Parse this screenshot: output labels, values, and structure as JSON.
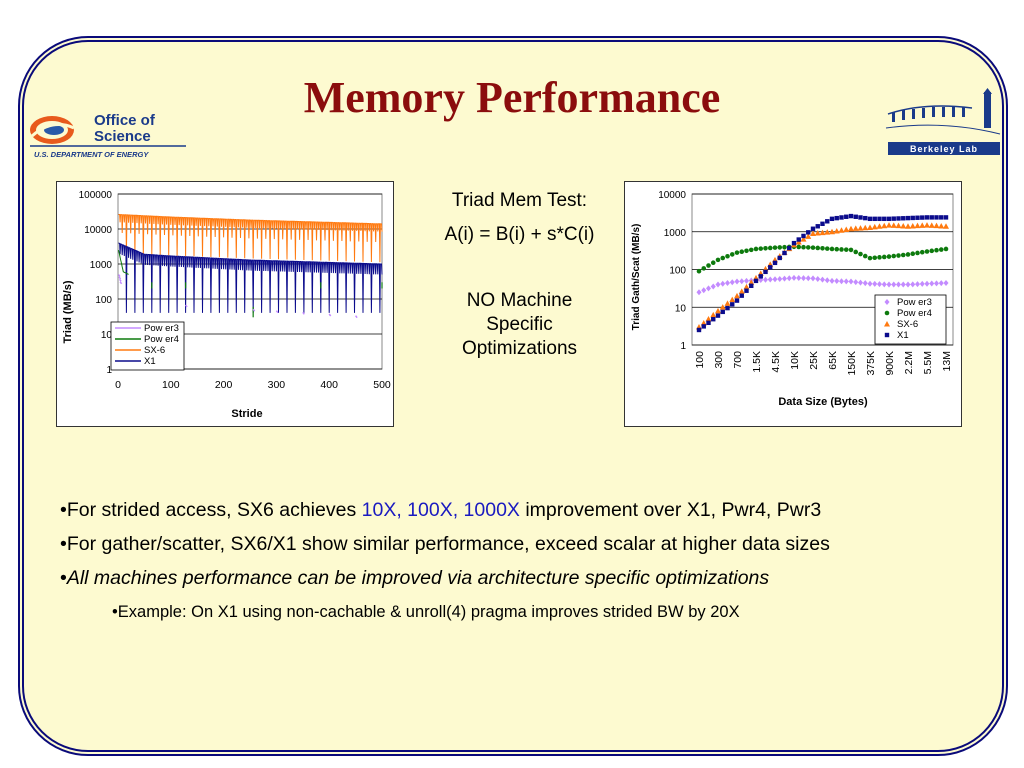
{
  "slide": {
    "title": "Memory Performance",
    "logo_left": {
      "line1": "Office of",
      "line2": "Science",
      "line3": "U.S. DEPARTMENT OF ENERGY"
    },
    "logo_right": {
      "text": "Berkeley Lab"
    }
  },
  "center": {
    "line1": "Triad Mem Test:",
    "line2": "A(i) = B(i) + s*C(i)",
    "line3": "NO Machine",
    "line4": "Specific",
    "line5": "Optimizations"
  },
  "bullets": {
    "b1_pre": "•For strided access, SX6 achieves ",
    "b1_hl": "10X, 100X, 1000X",
    "b1_post": " improvement over X1, Pwr4, Pwr3",
    "b2": "•For gather/scatter, SX6/X1 show similar performance, exceed scalar at higher data sizes",
    "b3_bullet": "•",
    "b3": "All machines performance can be improved via architecture specific optimizations",
    "b4": "•Example: On X1 using non-cachable & unroll(4) pragma improves strided BW by 20X"
  },
  "colors": {
    "Power3": "#c38bff",
    "Power4": "#0d7a0d",
    "SX-6": "#ff7a10",
    "X1": "#0b0b8c"
  },
  "chart_data": [
    {
      "type": "line",
      "xlabel": "Stride",
      "ylabel": "Triad (MB/s)",
      "ylog": true,
      "ylim": [
        1,
        100000
      ],
      "xlim": [
        0,
        500
      ],
      "yticks": [
        "100000",
        "10000",
        "1000",
        "100",
        "10",
        "1"
      ],
      "xticks": [
        "0",
        "100",
        "200",
        "300",
        "400",
        "500"
      ],
      "legend": [
        "Pow er3",
        "Pow er4",
        "SX-6",
        "X1"
      ],
      "legend_position": "lower-left",
      "series": [
        {
          "name": "Pow er3",
          "description_points": [
            [
              1,
              500
            ],
            [
              10,
              120
            ],
            [
              50,
              80
            ],
            [
              500,
              30
            ]
          ]
        },
        {
          "name": "Pow er4",
          "description_points": [
            [
              1,
              2500
            ],
            [
              10,
              600
            ],
            [
              50,
              300
            ],
            [
              256,
              30
            ],
            [
              500,
              60
            ]
          ]
        },
        {
          "name": "SX-6",
          "description_points": [
            [
              1,
              26000
            ],
            [
              100,
              22000
            ],
            [
              250,
              18000
            ],
            [
              500,
              14000
            ]
          ]
        },
        {
          "name": "X1",
          "description_points": [
            [
              1,
              4000
            ],
            [
              50,
              1900
            ],
            [
              100,
              1700
            ],
            [
              250,
              1300
            ],
            [
              500,
              1000
            ]
          ]
        }
      ]
    },
    {
      "type": "scatter",
      "xlabel": "Data Size (Bytes)",
      "ylabel": "Triad Gath/Scat (MB/s)",
      "ylog": true,
      "ylim": [
        1,
        10000
      ],
      "yticks": [
        "10000",
        "1000",
        "100",
        "10",
        "1"
      ],
      "categories": [
        "100",
        "300",
        "700",
        "1.5K",
        "4.5K",
        "10K",
        "25K",
        "65K",
        "150K",
        "375K",
        "900K",
        "2.2M",
        "5.5M",
        "13M"
      ],
      "legend": [
        "Pow er3",
        "Pow er4",
        "SX-6",
        "X1"
      ],
      "legend_position": "right",
      "series": [
        {
          "name": "Pow er3",
          "values": [
            25,
            40,
            48,
            52,
            55,
            60,
            58,
            50,
            48,
            42,
            40,
            40,
            42,
            44
          ]
        },
        {
          "name": "Pow er4",
          "values": [
            90,
            180,
            280,
            350,
            380,
            400,
            380,
            350,
            330,
            200,
            220,
            250,
            300,
            350
          ]
        },
        {
          "name": "SX-6",
          "values": [
            3,
            8,
            20,
            60,
            180,
            450,
            900,
            1000,
            1200,
            1300,
            1500,
            1400,
            1500,
            1400
          ]
        },
        {
          "name": "X1",
          "values": [
            2.5,
            6,
            15,
            50,
            150,
            500,
            1200,
            2200,
            2600,
            2200,
            2200,
            2300,
            2400,
            2400
          ]
        }
      ]
    }
  ]
}
